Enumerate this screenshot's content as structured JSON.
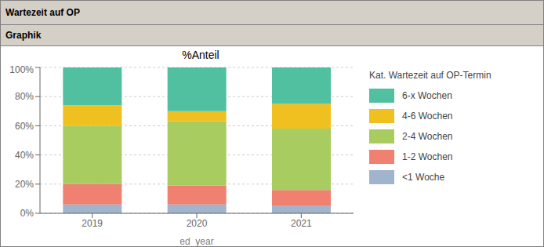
{
  "chart_data": {
    "type": "bar",
    "title": "%Anteil",
    "xlabel": "ed_year",
    "annotations": [
      "Wartezeit auf OP",
      "Graphik"
    ],
    "legend_title": "Kat. Wartezeit auf OP-Termin",
    "categories": [
      "2019",
      "2020",
      "2021"
    ],
    "series": [
      {
        "name": "<1 Woche",
        "color": "#a0b4cc",
        "values": [
          6,
          6,
          5
        ]
      },
      {
        "name": "1-2 Wochen",
        "color": "#f08070",
        "values": [
          14,
          13,
          11
        ]
      },
      {
        "name": "2-4 Wochen",
        "color": "#a8cc60",
        "values": [
          40,
          44,
          42
        ]
      },
      {
        "name": "4-6 Wochen",
        "color": "#f0c020",
        "values": [
          14,
          7,
          17
        ]
      },
      {
        "name": "6-x Wochen",
        "color": "#50c0a0",
        "values": [
          26,
          30,
          25
        ]
      }
    ],
    "ylim": [
      0,
      100
    ],
    "yticks": [
      {
        "value": 0,
        "label": "0%"
      },
      {
        "value": 20,
        "label": "20%"
      },
      {
        "value": 40,
        "label": "40%"
      },
      {
        "value": 60,
        "label": "60%"
      },
      {
        "value": 80,
        "label": "80%"
      },
      {
        "value": 100,
        "label": "100%"
      }
    ],
    "stacked": true,
    "grid": true,
    "legend": "right"
  }
}
